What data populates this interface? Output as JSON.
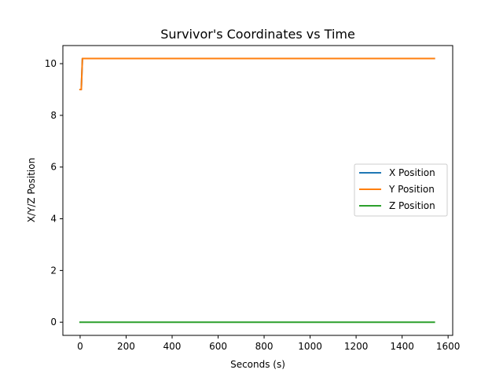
{
  "chart_data": {
    "type": "line",
    "title": "Survivor's Coordinates vs Time",
    "xlabel": "Seconds (s)",
    "ylabel": "X/Y/Z Position",
    "xlim": [
      -75,
      1620
    ],
    "ylim": [
      -0.51,
      10.7
    ],
    "xticks": [
      0,
      200,
      400,
      600,
      800,
      1000,
      1200,
      1400,
      1600
    ],
    "yticks": [
      0,
      2,
      4,
      6,
      8,
      10
    ],
    "grid": false,
    "legend_position": "center-right",
    "series": [
      {
        "name": "X Position",
        "color": "#1f77b4",
        "points": [
          [
            0,
            9
          ],
          [
            5,
            9
          ],
          [
            10,
            10.2
          ],
          [
            1540,
            10.2
          ]
        ]
      },
      {
        "name": "Y Position",
        "color": "#ff7f0e",
        "points": [
          [
            0,
            9
          ],
          [
            5,
            9
          ],
          [
            10,
            10.2
          ],
          [
            1540,
            10.2
          ]
        ]
      },
      {
        "name": "Z Position",
        "color": "#2ca02c",
        "points": [
          [
            0,
            0
          ],
          [
            1540,
            0
          ]
        ]
      }
    ]
  }
}
